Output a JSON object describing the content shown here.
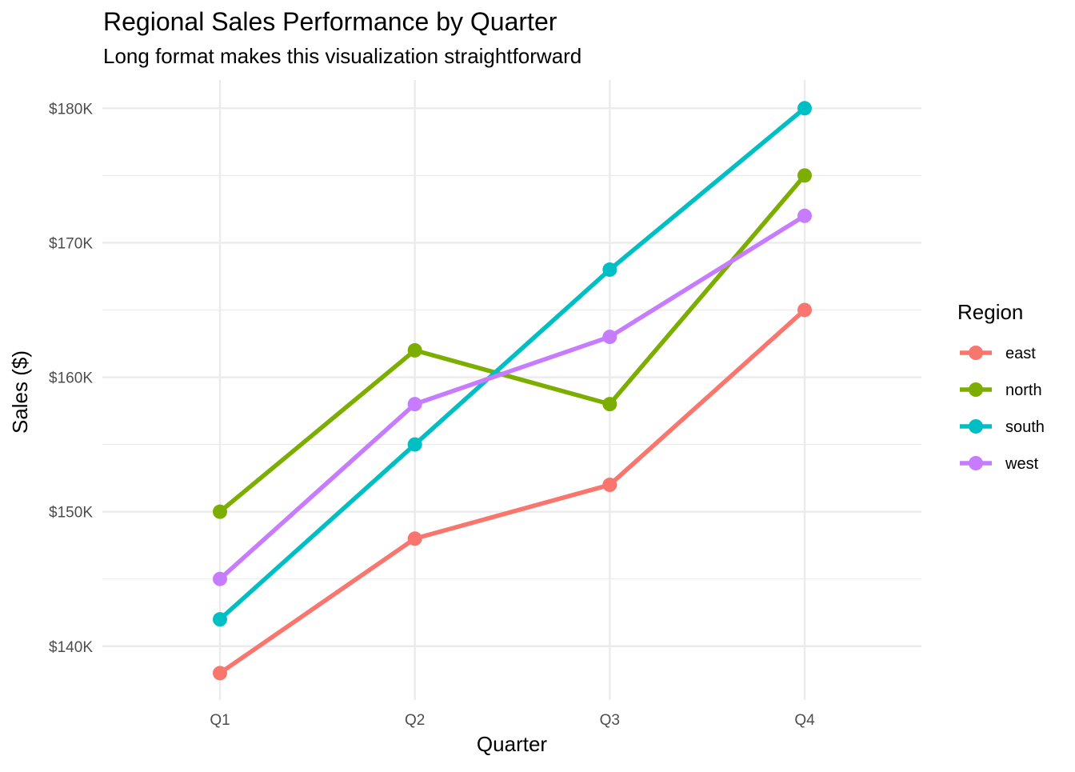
{
  "chart_data": {
    "type": "line",
    "title": "Regional Sales Performance by Quarter",
    "subtitle": "Long format makes this visualization straightforward",
    "xlabel": "Quarter",
    "ylabel": "Sales ($)",
    "categories": [
      "Q1",
      "Q2",
      "Q3",
      "Q4"
    ],
    "y_ticks": [
      140,
      150,
      160,
      170,
      180
    ],
    "y_tick_labels": [
      "$140K",
      "$150K",
      "$160K",
      "$170K",
      "$180K"
    ],
    "y_minor_ticks": [
      145,
      155,
      165,
      175
    ],
    "ylim": [
      136.0,
      182.1
    ],
    "y_units": "thousands of dollars",
    "grid": true,
    "legend": {
      "title": "Region",
      "placement": "right"
    },
    "series": [
      {
        "name": "east",
        "color": "#F8766D",
        "values": [
          138,
          148,
          152,
          165
        ]
      },
      {
        "name": "north",
        "color": "#7CAE00",
        "values": [
          150,
          162,
          158,
          175
        ]
      },
      {
        "name": "south",
        "color": "#00BFC4",
        "values": [
          142,
          155,
          168,
          180
        ]
      },
      {
        "name": "west",
        "color": "#C77CFF",
        "values": [
          145,
          158,
          163,
          172
        ]
      }
    ]
  }
}
